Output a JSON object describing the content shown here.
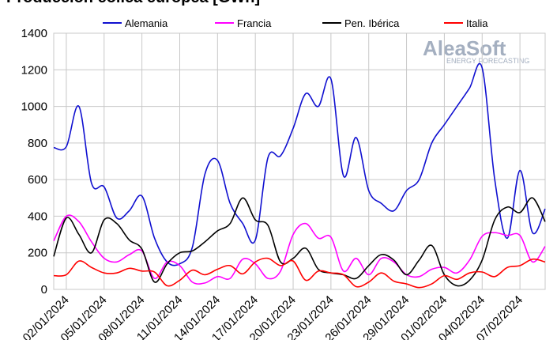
{
  "chart_data": {
    "type": "line",
    "title": "Producción eólica europea [GWh]",
    "watermark": [
      "AleaSoft",
      "ENERGY FORECASTING"
    ],
    "x": [
      null,
      "02/01/2024",
      null,
      null,
      "05/01/2024",
      null,
      null,
      "08/01/2024",
      null,
      null,
      "11/01/2024",
      null,
      null,
      "14/01/2024",
      null,
      null,
      "17/01/2024",
      null,
      null,
      "20/01/2024",
      null,
      null,
      "23/01/2024",
      null,
      null,
      "26/01/2024",
      null,
      null,
      "29/01/2024",
      null,
      null,
      "01/02/2024",
      null,
      null,
      "04/02/2024",
      null,
      null,
      "07/02/2024",
      null,
      null
    ],
    "series": [
      {
        "name": "Alemania",
        "color": "#1010d0",
        "values": [
          775,
          780,
          1000,
          580,
          560,
          390,
          430,
          510,
          280,
          150,
          140,
          230,
          630,
          705,
          470,
          360,
          270,
          720,
          730,
          880,
          1070,
          1000,
          1150,
          620,
          830,
          540,
          470,
          430,
          540,
          600,
          800,
          900,
          1000,
          1100,
          1210,
          600,
          280,
          650,
          310,
          440
        ]
      },
      {
        "name": "Francia",
        "color": "#ff00ff",
        "values": [
          265,
          400,
          370,
          260,
          170,
          150,
          190,
          210,
          60,
          150,
          130,
          40,
          35,
          70,
          60,
          165,
          140,
          60,
          100,
          300,
          360,
          280,
          285,
          100,
          170,
          80,
          170,
          150,
          80,
          70,
          110,
          120,
          90,
          160,
          290,
          310,
          295,
          295,
          150,
          235
        ]
      },
      {
        "name": "Pen. Ibérica",
        "color": "#000000",
        "values": [
          180,
          390,
          300,
          200,
          380,
          360,
          270,
          220,
          40,
          140,
          200,
          210,
          260,
          320,
          360,
          500,
          380,
          350,
          150,
          170,
          225,
          110,
          90,
          80,
          60,
          130,
          190,
          160,
          80,
          160,
          240,
          80,
          20,
          50,
          160,
          380,
          450,
          420,
          500,
          370
        ]
      },
      {
        "name": "Italia",
        "color": "#ff0000",
        "values": [
          75,
          80,
          155,
          120,
          90,
          90,
          115,
          100,
          95,
          20,
          50,
          105,
          80,
          110,
          130,
          85,
          150,
          170,
          130,
          155,
          50,
          100,
          90,
          80,
          15,
          40,
          90,
          45,
          30,
          10,
          30,
          75,
          55,
          90,
          95,
          70,
          120,
          130,
          165,
          150
        ]
      }
    ],
    "ylim": [
      0,
      1400
    ],
    "yticks": [
      0,
      200,
      400,
      600,
      800,
      1000,
      1200,
      1400
    ],
    "grid": true,
    "legend": "top"
  }
}
